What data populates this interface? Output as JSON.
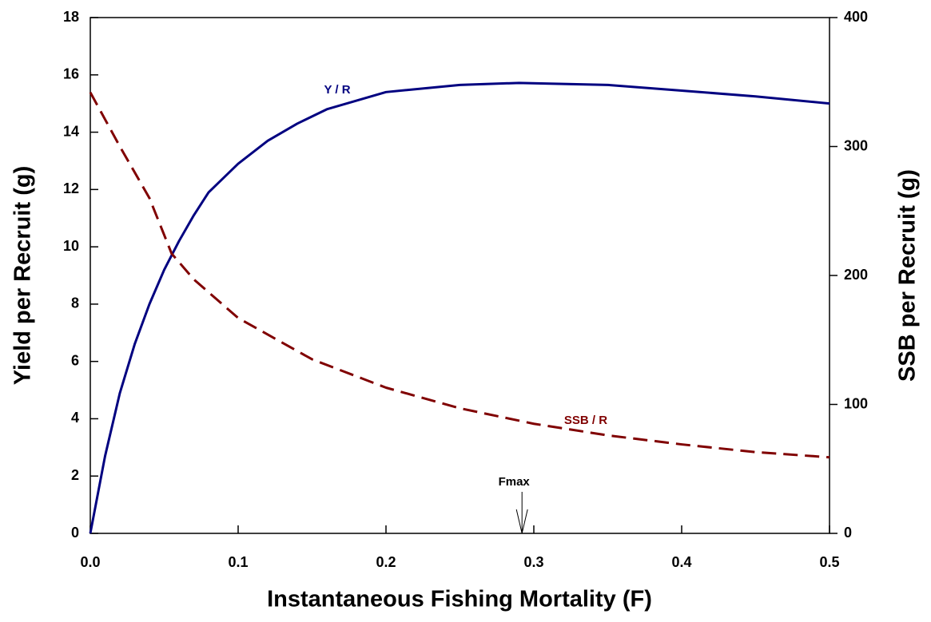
{
  "chart_data": {
    "type": "line",
    "x_label": "Instantaneous Fishing Mortality (F)",
    "y_label": "Yield per Recruit (g)",
    "y2_label": "SSB per Recruit (g)",
    "xlim": [
      0,
      0.5
    ],
    "xticks": [
      {
        "value": 0,
        "label": "0.0"
      },
      0.1,
      0.2,
      0.3,
      0.4,
      0.5
    ],
    "ylim": [
      0,
      18
    ],
    "yticks": [
      0,
      2,
      4,
      6,
      8,
      10,
      12,
      14,
      16,
      18
    ],
    "y2lim": [
      0,
      400
    ],
    "y2ticks": [
      0,
      100,
      200,
      300,
      400
    ],
    "series": [
      {
        "name": "Y / R",
        "color": "#000080",
        "line_style": "solid",
        "x": [
          0,
          0.01,
          0.02,
          0.03,
          0.04,
          0.05,
          0.06,
          0.07,
          0.08,
          0.1,
          0.12,
          0.14,
          0.16,
          0.18,
          0.2,
          0.25,
          0.29,
          0.35,
          0.4,
          0.45,
          0.5
        ],
        "values": [
          0,
          2.7,
          4.9,
          6.6,
          8.0,
          9.2,
          10.2,
          11.1,
          11.9,
          12.9,
          13.7,
          14.3,
          14.8,
          15.1,
          15.4,
          15.65,
          15.72,
          15.65,
          15.45,
          15.25,
          15.0
        ]
      },
      {
        "name": "SSB / R",
        "color": "#800000",
        "line_style": "dashed",
        "axis": "y2",
        "x": [
          0,
          0.02,
          0.04,
          0.055,
          0.07,
          0.1,
          0.15,
          0.2,
          0.25,
          0.3,
          0.35,
          0.4,
          0.45,
          0.5
        ],
        "values": [
          342,
          300,
          260,
          217,
          197,
          167,
          135,
          113,
          97,
          85,
          76,
          69,
          63,
          59
        ]
      }
    ],
    "annotations": [
      {
        "text": "Fmax",
        "x": 0.292
      }
    ]
  }
}
